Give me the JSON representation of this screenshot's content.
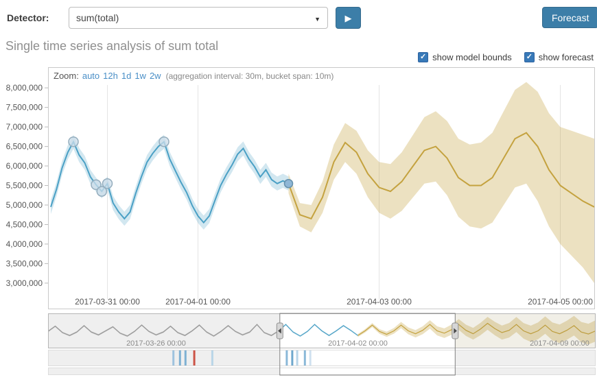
{
  "header": {
    "detector_label": "Detector:",
    "detector_value": "sum(total)",
    "forecast_button": "Forecast"
  },
  "title": "Single time series analysis of sum total",
  "toggles": {
    "model_bounds": "show model bounds",
    "forecast": "show forecast"
  },
  "zoom": {
    "label": "Zoom:",
    "options": [
      "auto",
      "12h",
      "1d",
      "1w",
      "2w"
    ],
    "info": "(aggregation interval: 30m, bucket span: 10m)"
  },
  "chart_data": {
    "type": "line",
    "title": "Single time series analysis of sum total",
    "legend_position": "none",
    "grid": "vertical-only",
    "colors": {
      "actual_line": "#4aa0c5",
      "actual_band": "rgba(74,160,197,0.25)",
      "forecast_line": "#c4a23f",
      "forecast_band": "rgba(196,162,63,0.32)",
      "marker_fill": "rgba(205,222,233,0.75)",
      "marker_stroke": "#94adbd",
      "latest_fill": "#8fb7d6",
      "latest_stroke": "#6590ab",
      "accent_button": "#3c7ea8",
      "link": "#4a8fc7",
      "checkbox": "#3879b8",
      "critical_tick": "#cc5346"
    },
    "main": {
      "xlim": [
        0,
        144
      ],
      "ylim": [
        2340000,
        8520000
      ],
      "yticks": [
        3000000,
        3500000,
        4000000,
        4500000,
        5000000,
        5500000,
        6000000,
        6500000,
        7000000,
        7500000,
        8000000
      ],
      "xticks": [
        {
          "t": 15,
          "label": "2017-03-31 00:00"
        },
        {
          "t": 39,
          "label": "2017-04-01 00:00"
        },
        {
          "t": 87,
          "label": "2017-04-03 00:00"
        },
        {
          "t": 135,
          "label": "2017-04-05 00:00"
        }
      ],
      "model_bounds_width": 180000,
      "actual": {
        "t0": 0,
        "step": 1.5,
        "v": [
          4950000,
          5400000,
          5950000,
          6350000,
          6620000,
          6280000,
          6080000,
          5720000,
          5520000,
          5350000,
          5550000,
          5050000,
          4820000,
          4650000,
          4820000,
          5300000,
          5720000,
          6100000,
          6320000,
          6500000,
          6620000,
          6180000,
          5880000,
          5580000,
          5320000,
          4980000,
          4720000,
          4550000,
          4720000,
          5120000,
          5500000,
          5780000,
          6020000,
          6300000,
          6450000,
          6180000,
          5980000,
          5720000,
          5900000,
          5650000,
          5550000,
          5620000,
          5550000
        ]
      },
      "forecast": {
        "t0": 63,
        "step": 3,
        "v": [
          5550000,
          4750000,
          4650000,
          5200000,
          6100000,
          6600000,
          6350000,
          5800000,
          5450000,
          5350000,
          5600000,
          6000000,
          6400000,
          6500000,
          6200000,
          5700000,
          5500000,
          5500000,
          5700000,
          6200000,
          6700000,
          6850000,
          6500000,
          5900000,
          5500000,
          5300000,
          5100000,
          4950000
        ],
        "lo": [
          5300000,
          4450000,
          4300000,
          4800000,
          5650000,
          6100000,
          5800000,
          5200000,
          4800000,
          4650000,
          4850000,
          5200000,
          5550000,
          5600000,
          5250000,
          4700000,
          4450000,
          4400000,
          4550000,
          5000000,
          5450000,
          5550000,
          5100000,
          4450000,
          4000000,
          3700000,
          3400000,
          3000000
        ],
        "hi": [
          5800000,
          5050000,
          5000000,
          5600000,
          6550000,
          7100000,
          6900000,
          6400000,
          6100000,
          6050000,
          6350000,
          6800000,
          7250000,
          7400000,
          7150000,
          6700000,
          6550000,
          6600000,
          6850000,
          7400000,
          7950000,
          8150000,
          7900000,
          7350000,
          7000000,
          6900000,
          6800000,
          6700000
        ]
      },
      "anomalies": [
        {
          "t": 6,
          "v": 6620000
        },
        {
          "t": 12,
          "v": 5520000
        },
        {
          "t": 13.5,
          "v": 5350000
        },
        {
          "t": 15,
          "v": 5550000
        },
        {
          "t": 30,
          "v": 6620000
        }
      ],
      "latest": {
        "t": 63,
        "v": 5550000
      }
    },
    "context": {
      "step_hours": 6,
      "ylim": [
        2600000,
        8400000
      ],
      "values": [
        5400000,
        6300000,
        5200000,
        4700000,
        5300000,
        6400000,
        5300000,
        4800000,
        5500000,
        6200000,
        5100000,
        4600000,
        5400000,
        6500000,
        5400000,
        4800000,
        5300000,
        6300000,
        5200000,
        4700000,
        5500000,
        6500000,
        5300000,
        4600000,
        5400000,
        6400000,
        5400000,
        4800000,
        5300000,
        6600000,
        5200000,
        4700000,
        5500000,
        6600000,
        5300000,
        4600000,
        5400000,
        6600000,
        5500000,
        4700000,
        5500000,
        6400000,
        5600000,
        4700000,
        5500000,
        6500000,
        5400000,
        4900000,
        5500000,
        6500000,
        5500000,
        5000000,
        5600000,
        6600000,
        5500000,
        5100000,
        5700000,
        6600000,
        5600000,
        5000000,
        5800000,
        6800000,
        5900000,
        5200000,
        5600000,
        6600000,
        5500000,
        5000000,
        5500000,
        6500000,
        5400000,
        5000000,
        5600000,
        6400000,
        5300000,
        4950000,
        5500000
      ],
      "gray_end_index": 32,
      "forecast_start_index": 43,
      "forecast_start_t": 258,
      "band_width": 150000,
      "forecast_band": {
        "start_width": 250000,
        "growth_per_hour": 8000
      },
      "selection": {
        "t0": 193,
        "t1": 339
      },
      "labels": [
        {
          "t": 90,
          "label": "2017-03-26 00:00"
        },
        {
          "t": 258,
          "label": "2017-04-02 00:00"
        },
        {
          "t": 426,
          "label": "2017-04-09 00:00"
        }
      ],
      "events": [
        {
          "frac": 0.229,
          "color": "#9fc3de"
        },
        {
          "frac": 0.241,
          "color": "#7fb1d3"
        },
        {
          "frac": 0.251,
          "color": "#7fb1d3"
        },
        {
          "frac": 0.267,
          "color": "#cc5346"
        },
        {
          "frac": 0.3,
          "color": "#b9d5e8"
        },
        {
          "frac": 0.436,
          "color": "#8ab8d8"
        },
        {
          "frac": 0.446,
          "color": "#6ea7cd"
        },
        {
          "frac": 0.455,
          "color": "#b9d5e8"
        },
        {
          "frac": 0.469,
          "color": "#8ab8d8"
        },
        {
          "frac": 0.479,
          "color": "#cfe1ef"
        }
      ]
    }
  }
}
